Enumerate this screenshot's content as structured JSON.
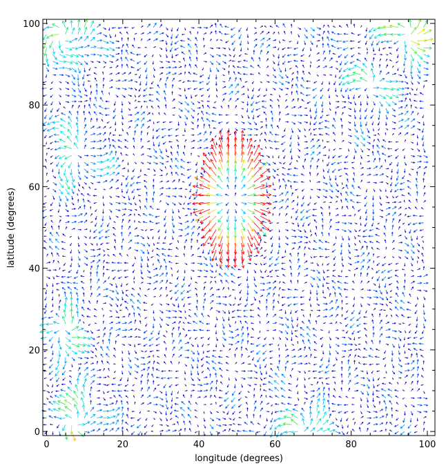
{
  "chart_data": {
    "type": "vector-field",
    "title": "",
    "xlabel": "longitude (degrees)",
    "ylabel": "latitude (degrees)",
    "xlim": [
      -1,
      102
    ],
    "ylim": [
      -1,
      101
    ],
    "x_ticks": [
      0,
      20,
      40,
      60,
      80,
      100
    ],
    "y_ticks": [
      0,
      20,
      40,
      60,
      80,
      100
    ],
    "x_tick_labels": [
      "0",
      "20",
      "40",
      "60",
      "80",
      "100"
    ],
    "y_tick_labels": [
      "0",
      "20",
      "40",
      "60",
      "80",
      "100"
    ],
    "grid": false,
    "legend": "none",
    "field": {
      "x_range": [
        0,
        100
      ],
      "y_range": [
        0,
        100
      ],
      "spacing": 1.65,
      "color_scale": "magnitude: purple → blue → cyan → green → yellow → red",
      "features": [
        {
          "kind": "source",
          "center": [
            49,
            57
          ],
          "radius_x": 8,
          "radius_y": 15,
          "peak_magnitude": 1.0
        },
        {
          "kind": "swirl",
          "center": [
            4,
            97
          ],
          "magnitude": 0.7
        },
        {
          "kind": "swirl",
          "center": [
            95,
            97
          ],
          "magnitude": 0.6
        },
        {
          "kind": "swirl",
          "center": [
            7,
            2
          ],
          "magnitude": 0.6
        },
        {
          "kind": "swirl",
          "center": [
            8,
            68
          ],
          "magnitude": 0.45
        },
        {
          "kind": "swirl",
          "center": [
            5,
            25
          ],
          "magnitude": 0.45
        },
        {
          "kind": "swirl",
          "center": [
            85,
            85
          ],
          "magnitude": 0.4
        },
        {
          "kind": "swirl",
          "center": [
            66,
            0
          ],
          "magnitude": 0.45
        }
      ]
    }
  }
}
